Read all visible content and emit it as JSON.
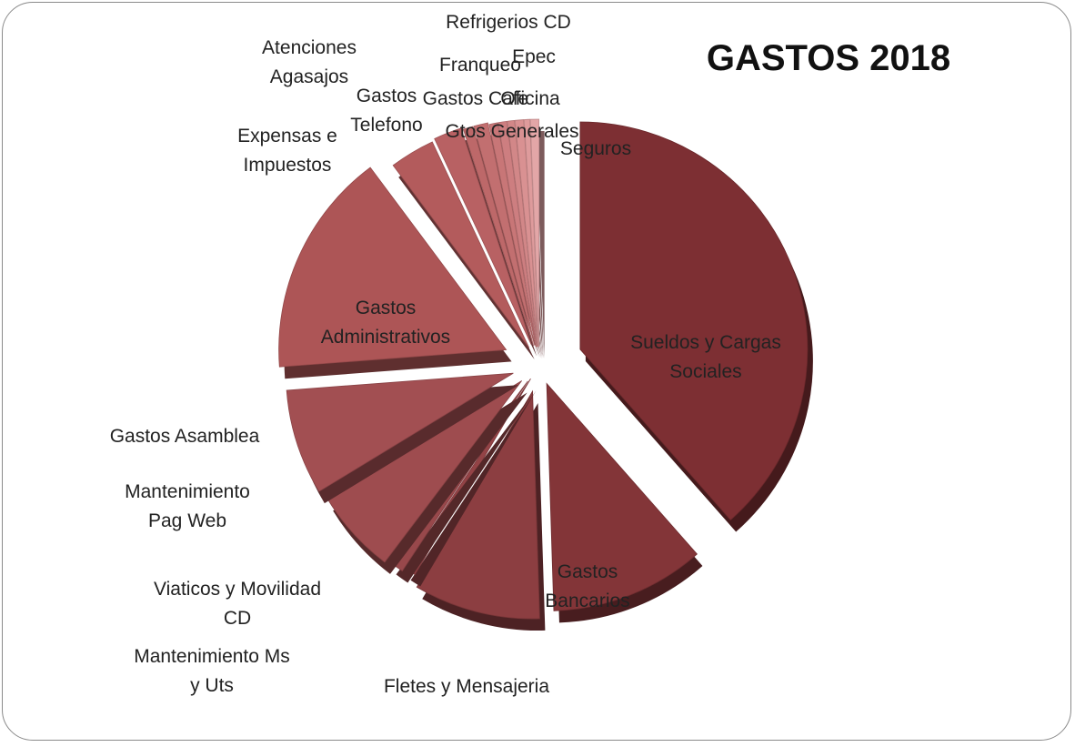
{
  "chart_data": {
    "type": "pie",
    "style": "3d-exploded",
    "title": "GASTOS 2018",
    "legend": "none",
    "slices": [
      {
        "label": [
          "Sueldos y Cargas",
          "Sociales"
        ],
        "value": 38.5,
        "color": "#7d2f33"
      },
      {
        "label": [
          "Gastos",
          "Bancarios"
        ],
        "value": 11.0,
        "color": "#833538"
      },
      {
        "label": [
          "Fletes y Mensajeria"
        ],
        "value": 9.0,
        "color": "#8c3e41"
      },
      {
        "label": [
          "Mantenimiento Ms",
          "y Uts"
        ],
        "value": 0.8,
        "color": "#934346"
      },
      {
        "label": [
          "Viaticos y Movilidad",
          "CD"
        ],
        "value": 1.0,
        "color": "#98484b"
      },
      {
        "label": [
          "Mantenimiento",
          "Pag Web"
        ],
        "value": 6.0,
        "color": "#9e4c4f"
      },
      {
        "label": [
          "Gastos Asamblea"
        ],
        "value": 7.5,
        "color": "#a24f52"
      },
      {
        "label": [
          "Gastos",
          "Administrativos"
        ],
        "value": 16.0,
        "color": "#ad5556"
      },
      {
        "label": [
          "Expensas e",
          "Impuestos"
        ],
        "value": 3.2,
        "color": "#b35b5c"
      },
      {
        "label": [
          "Gastos",
          "Telefono"
        ],
        "value": 2.0,
        "color": "#b86163"
      },
      {
        "label": [
          "Atenciones",
          "Agasajos"
        ],
        "value": 0.7,
        "color": "#bd6869"
      },
      {
        "label": [
          "Gastos Cafe"
        ],
        "value": 1.0,
        "color": "#c26f70"
      },
      {
        "label": [
          "Franqueo"
        ],
        "value": 0.6,
        "color": "#c87677"
      },
      {
        "label": [
          "Oficina"
        ],
        "value": 0.6,
        "color": "#cd7e80"
      },
      {
        "label": [
          "Epec"
        ],
        "value": 0.5,
        "color": "#d28788"
      },
      {
        "label": [
          "Gtos Generales"
        ],
        "value": 0.6,
        "color": "#d99192"
      },
      {
        "label": [
          "Refrigerios CD"
        ],
        "value": 0.4,
        "color": "#de9b9c"
      },
      {
        "label": [
          "Seguros"
        ],
        "value": 0.6,
        "color": "#e3a6a7"
      }
    ]
  }
}
